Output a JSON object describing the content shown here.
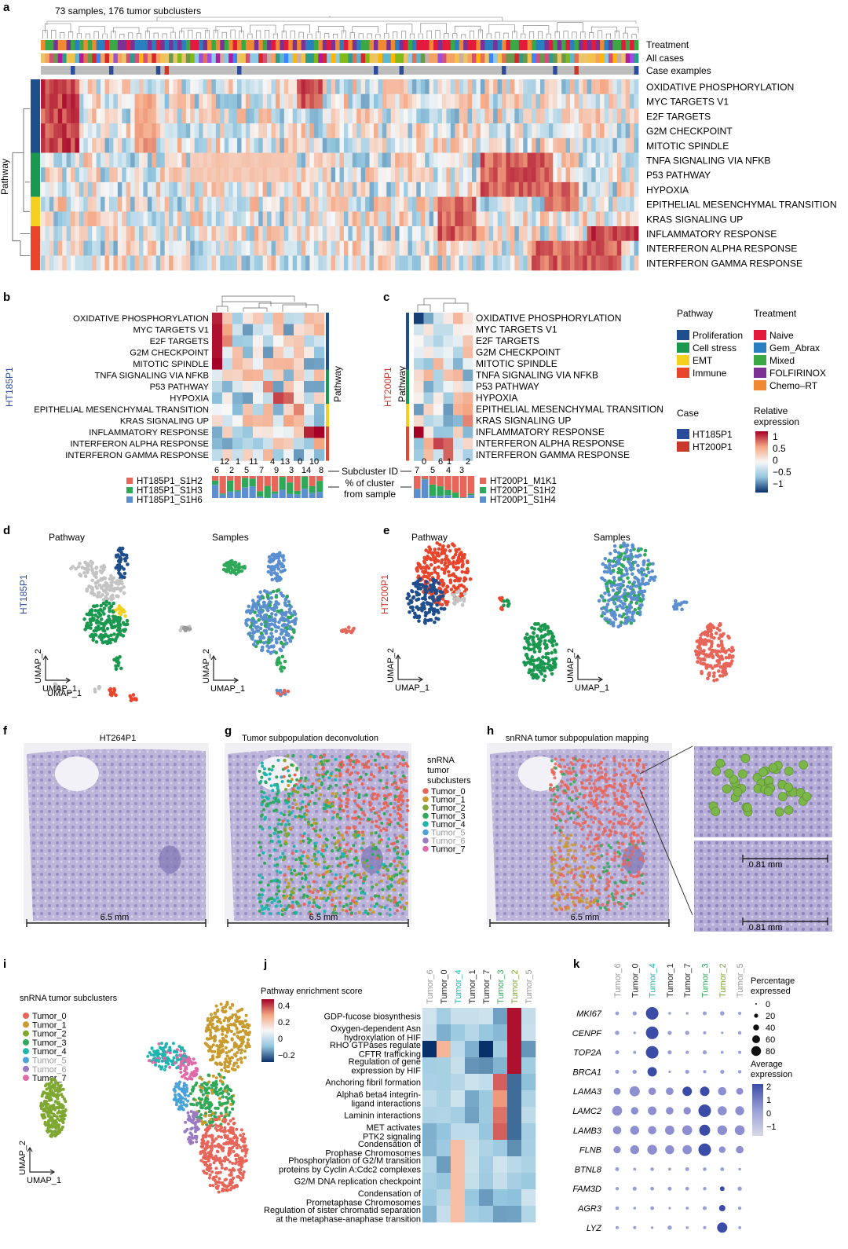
{
  "colors": {
    "proliferation": "#1f4e8c",
    "cell_stress": "#1a9850",
    "emt": "#f5d020",
    "immune": "#e8452c",
    "naive": "#e31a3c",
    "gem_abrax": "#2a7fc1",
    "mixed": "#3aa845",
    "folfirinox": "#7b3294",
    "chemo_rt": "#f08a32",
    "case_ht185p1": "#2b4c9c",
    "case_ht200p1": "#c8392b",
    "tumor": [
      "#e8655a",
      "#c99a2e",
      "#7fa832",
      "#2fa85a",
      "#1fb5b0",
      "#4aa3d8",
      "#9b7ac4",
      "#e06aa8"
    ],
    "tissue": "#9a90c4",
    "gray": "#c4c4c4"
  },
  "panel_a": {
    "letter": "a",
    "title": "73 samples, 176 tumor subclusters",
    "annotation_rows": [
      "Treatment",
      "All cases",
      "Case examples"
    ],
    "row_labels": [
      "OXIDATIVE PHOSPHORYLATION",
      "MYC TARGETS V1",
      "E2F TARGETS",
      "G2M CHECKPOINT",
      "MITOTIC SPINDLE",
      "TNFA SIGNALING VIA NFKB",
      "P53 PATHWAY",
      "HYPOXIA",
      "EPITHELIAL MESENCHYMAL TRANSITION",
      "KRAS SIGNALING UP",
      "INFLAMMATORY RESPONSE",
      "INTERFERON ALPHA RESPONSE",
      "INTERFERON GAMMA RESPONSE"
    ],
    "side_label": "Pathway"
  },
  "panel_b": {
    "letter": "b",
    "sample": "HT185P1",
    "row_labels": [
      "OXIDATIVE PHOSPHORYLATION",
      "MYC TARGETS V1",
      "E2F TARGETS",
      "G2M CHECKPOINT",
      "MITOTIC SPINDLE",
      "TNFA SIGNALING VIA NFKB",
      "P53 PATHWAY",
      "HYPOXIA",
      "EPITHELIAL MESENCHYMAL TRANSITION",
      "KRAS SIGNALING UP",
      "INFLAMMATORY RESPONSE",
      "INTERFERON ALPHA RESPONSE",
      "INTERFERON GAMMA RESPONSE"
    ],
    "pathway_label": "Pathway",
    "cluster_ids_top": [
      "12",
      "1",
      "11",
      "4",
      "13",
      "0",
      "10"
    ],
    "cluster_ids_bottom": [
      "6",
      "2",
      "5",
      "7",
      "9",
      "3",
      "14",
      "8"
    ],
    "subcluster_label": "Subcluster ID",
    "pct_label_1": "% of cluster",
    "pct_label_2": "from sample",
    "legend": [
      "HT185P1_S1H2",
      "HT185P1_S1H3",
      "HT185P1_S1H6"
    ]
  },
  "panel_c": {
    "letter": "c",
    "sample": "HT200P1",
    "row_labels": [
      "OXIDATIVE PHOSPHORYLATION",
      "MYC TARGETS V1",
      "E2F TARGETS",
      "G2M CHECKPOINT",
      "MITOTIC SPINDLE",
      "TNFA SIGNALING VIA NFKB",
      "P53 PATHWAY",
      "HYPOXIA",
      "EPITHELIAL MESENCHYMAL TRANSITION",
      "KRAS SIGNALING UP",
      "INFLAMMATORY RESPONSE",
      "INTERFERON ALPHA RESPONSE",
      "INTERFERON GAMMA RESPONSE"
    ],
    "pathway_label": "Pathway",
    "cluster_ids_top": [
      "0",
      "6",
      "1",
      "2"
    ],
    "cluster_ids_bottom": [
      "7",
      "5",
      "4",
      "3"
    ],
    "legend": [
      "HT200P1_M1K1",
      "HT200P1_S1H2",
      "HT200P1_S1H4"
    ]
  },
  "legend_bc": {
    "pathway_title": "Pathway",
    "pathway_items": [
      "Proliferation",
      "Cell stress",
      "EMT",
      "Immune"
    ],
    "treatment_title": "Treatment",
    "treatment_items": [
      "Naive",
      "Gem_Abrax",
      "Mixed",
      "FOLFIRINOX",
      "Chemo–RT"
    ],
    "case_title": "Case",
    "case_items": [
      "HT185P1",
      "HT200P1"
    ],
    "expr_title_1": "Relative",
    "expr_title_2": "expression",
    "expr_ticks": [
      "1",
      "0.5",
      "0",
      "−0.5",
      "−1"
    ]
  },
  "panel_d": {
    "letter": "d",
    "sample": "HT185P1",
    "sub1": "Pathway",
    "sub2": "Samples",
    "ax_y": "UMAP_2",
    "ax_x": "UMAP_1"
  },
  "panel_e": {
    "letter": "e",
    "sample": "HT200P1",
    "sub1": "Pathway",
    "sub2": "Samples",
    "ax_y": "UMAP_2",
    "ax_x": "UMAP_1"
  },
  "panel_f": {
    "letter": "f",
    "title": "HT264P1",
    "scale": "6.5 mm"
  },
  "panel_g": {
    "letter": "g",
    "title": "Tumor subpopulation deconvolution",
    "scale": "6.5 mm",
    "legend_title": [
      "snRNA",
      "tumor",
      "subclusters"
    ],
    "legend": [
      "Tumor_0",
      "Tumor_1",
      "Tumor_2",
      "Tumor_3",
      "Tumor_4",
      "Tumor_5",
      "Tumor_6",
      "Tumor_7"
    ]
  },
  "panel_h": {
    "letter": "h",
    "title": "snRNA tumor subpopulation mapping",
    "scale": "6.5 mm",
    "inset_scale_1": "0.81 mm",
    "inset_scale_2": "0.81 mm"
  },
  "panel_i": {
    "letter": "i",
    "title": "snRNA tumor subclusters",
    "legend": [
      "Tumor_0",
      "Tumor_1",
      "Tumor_2",
      "Tumor_3",
      "Tumor_4",
      "Tumor_5",
      "Tumor_6",
      "Tumor_7"
    ],
    "ax_y": "UMAP_2",
    "ax_x": "UMAP_1"
  },
  "panel_j": {
    "letter": "j",
    "scale_title": "Pathway enrichment score",
    "scale_ticks": [
      "0.4",
      "0.2",
      "0",
      "−0.2"
    ],
    "columns": [
      "Tumor_6",
      "Tumor_0",
      "Tumor_4",
      "Tumor_1",
      "Tumor_7",
      "Tumor_3",
      "Tumor_2",
      "Tumor_5"
    ],
    "rows": [
      [
        "GDP-fucose biosynthesis"
      ],
      [
        "Oxygen-dependent Asn",
        "hydroxylation of HIF"
      ],
      [
        "RHO GTPases regulate",
        "CFTR trafficking"
      ],
      [
        "Regulation of gene",
        "expression by HIF"
      ],
      [
        "Anchoring fibril formation"
      ],
      [
        "Alpha6 beta4 integrin-",
        "ligand interactions"
      ],
      [
        "Laminin interactions"
      ],
      [
        "MET activates",
        "PTK2 signaling"
      ],
      [
        "Condensation of",
        "Prophase Chromosomes"
      ],
      [
        "Phosphorylation of G2/M transition",
        "proteins by Cyclin A:Cdc2 complexes"
      ],
      [
        "G2/M DNA replication checkpoint"
      ],
      [
        "Condensation of",
        "Prometaphase Chromosomes"
      ],
      [
        "Regulation of sister chromatid separation",
        "at the metaphase-anaphase transition"
      ]
    ]
  },
  "panel_k": {
    "letter": "k",
    "columns": [
      "Tumor_6",
      "Tumor_0",
      "Tumor_4",
      "Tumor_1",
      "Tumor_7",
      "Tumor_3",
      "Tumor_2",
      "Tumor_5"
    ],
    "genes": [
      "MKI67",
      "CENPF",
      "TOP2A",
      "BRCA1",
      "LAMA3",
      "LAMC2",
      "LAMB3",
      "FLNB",
      "BTNL8",
      "FAM3D",
      "AGR3",
      "LYZ"
    ],
    "pct_title_1": "Percentage",
    "pct_title_2": "expressed",
    "pct_ticks": [
      "0",
      "20",
      "40",
      "60",
      "80"
    ],
    "avg_title_1": "Average",
    "avg_title_2": "expression",
    "avg_ticks": [
      "2",
      "1",
      "0",
      "−1"
    ]
  }
}
